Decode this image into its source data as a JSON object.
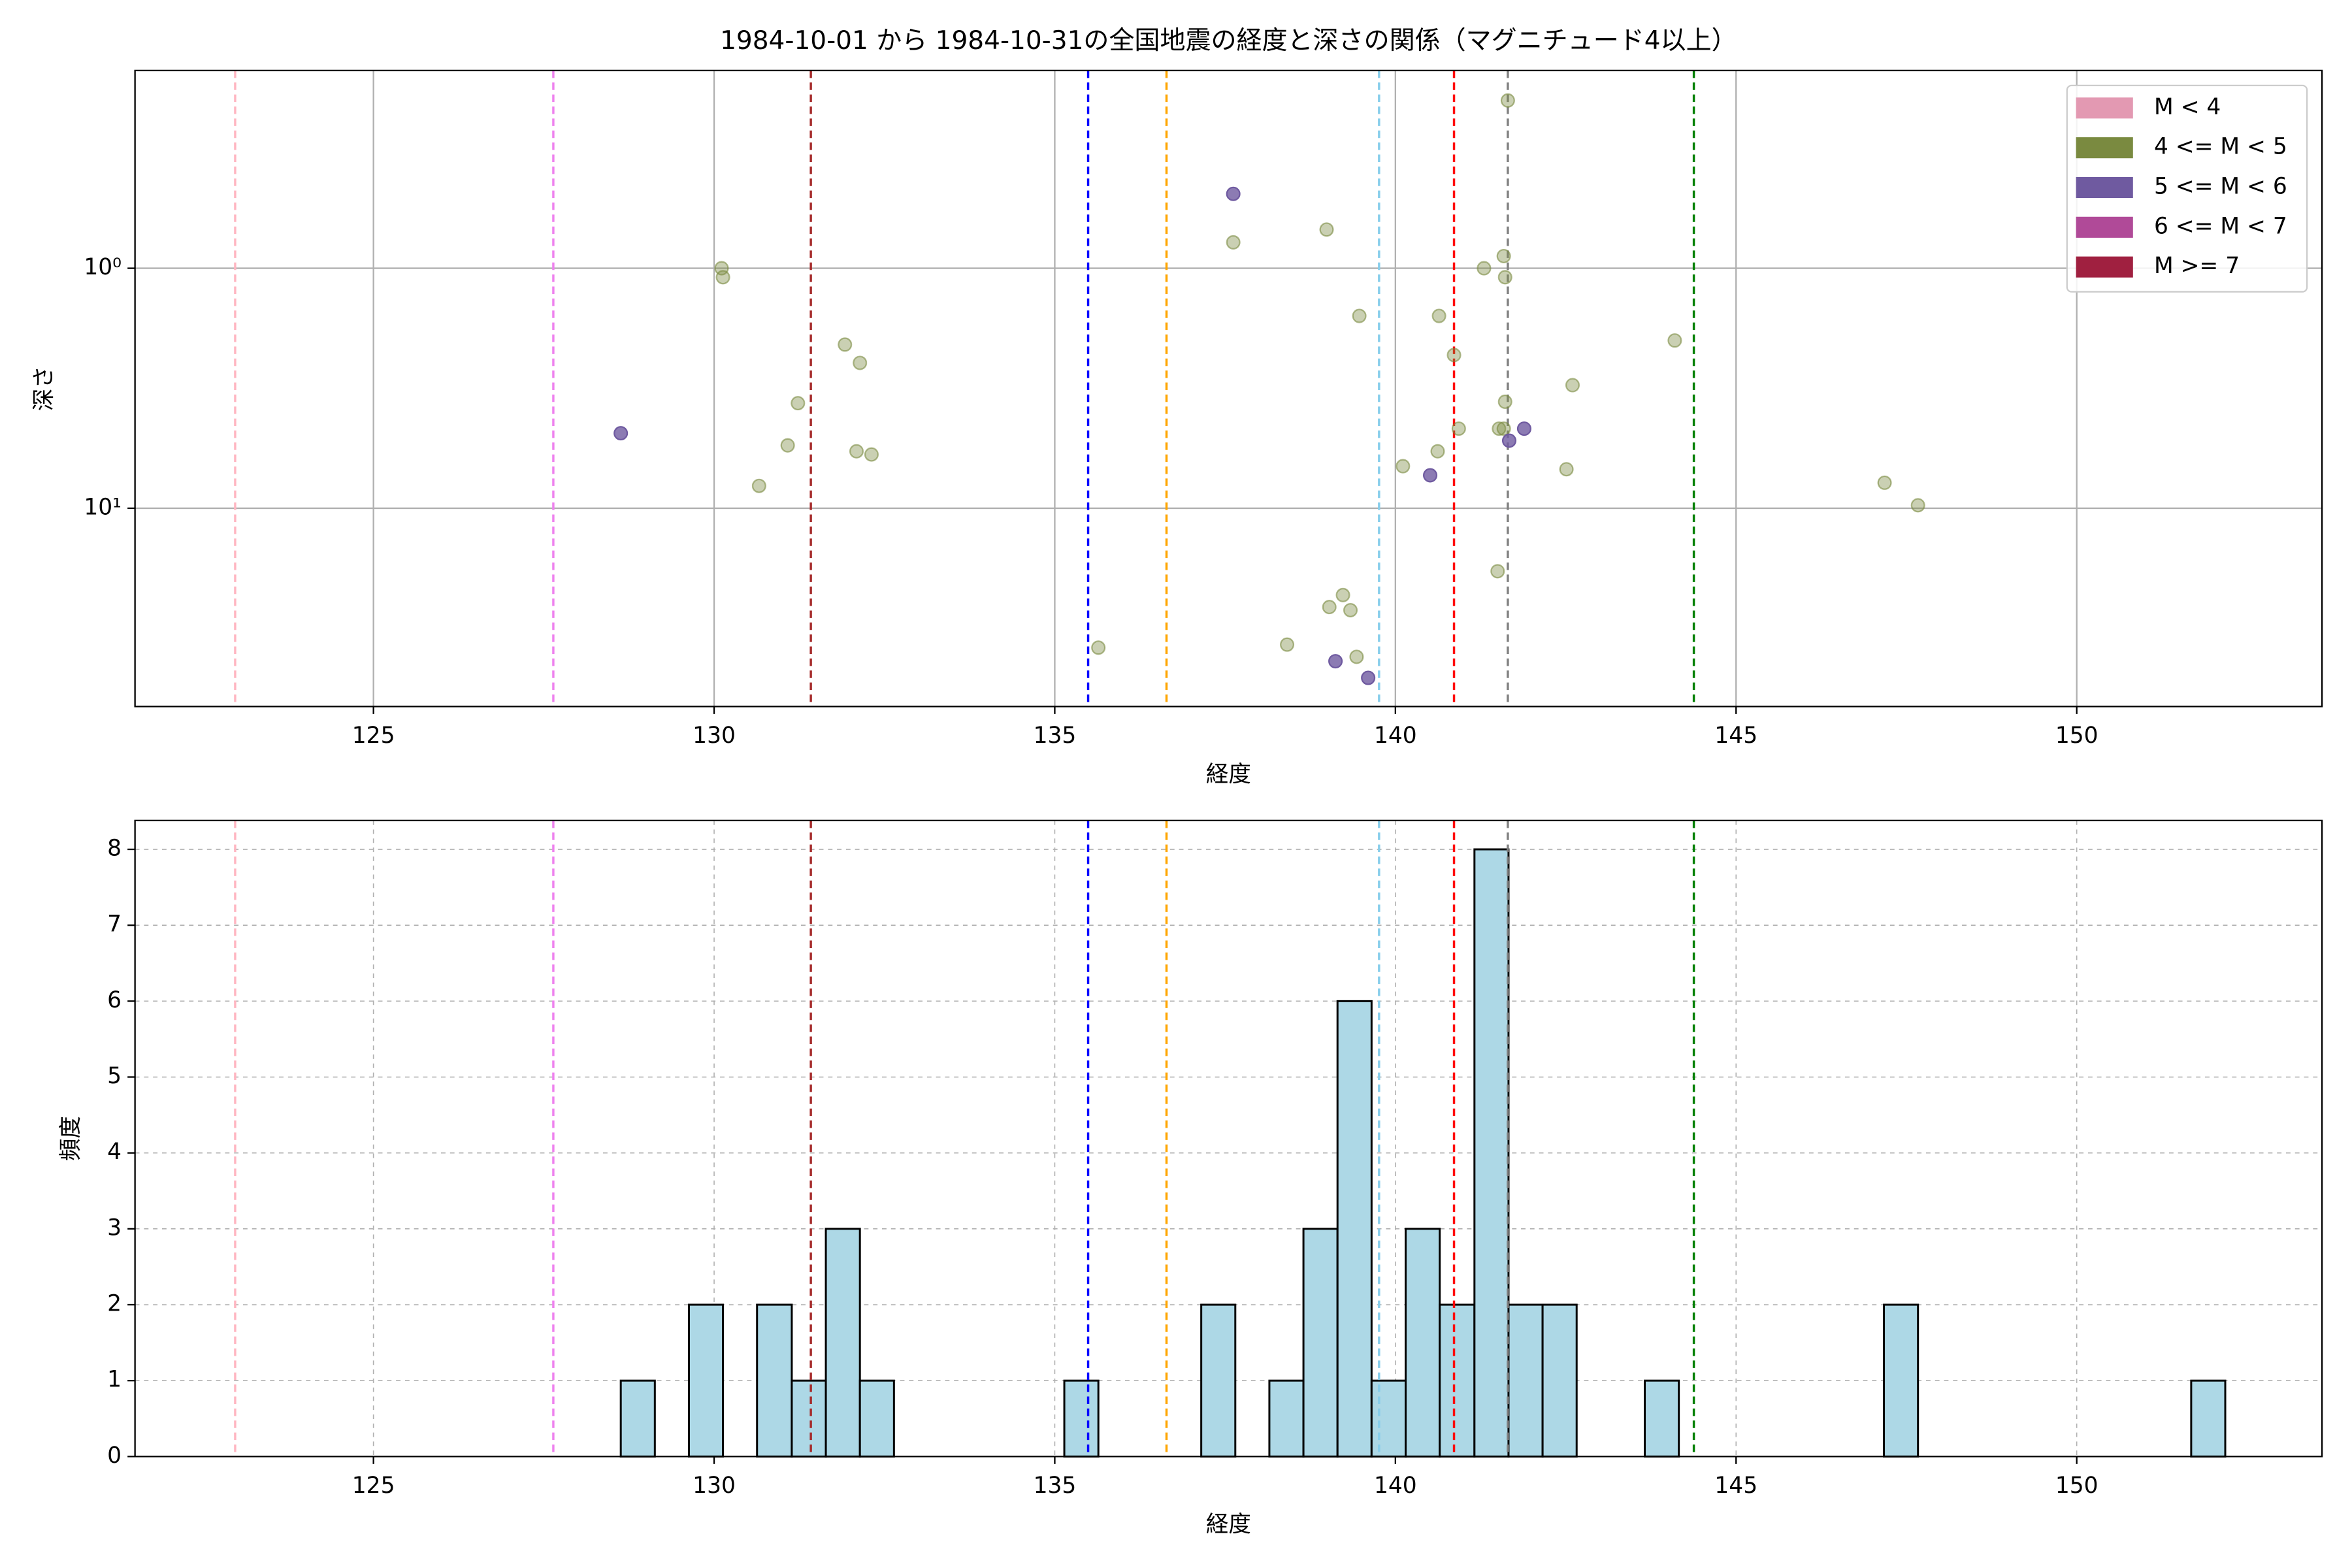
{
  "chart_data": [
    {
      "type": "scatter",
      "title": "1984-10-01 から 1984-10-31の全国地震の経度と深さの関係（マグニチュード4以上）",
      "xlabel": "経度",
      "ylabel": "深さ",
      "xlim": [
        121.5,
        153.6
      ],
      "xticks": [
        125,
        130,
        135,
        140,
        145,
        150
      ],
      "ylim": [
        0.15,
        67
      ],
      "yscale": "log",
      "y_inverted": true,
      "yticks": [
        {
          "value": 1,
          "label": "10⁰"
        },
        {
          "value": 10,
          "label": "10¹"
        }
      ],
      "grid": true,
      "legend": "upper right",
      "vlines": [
        {
          "x": 122.97,
          "color": "#ffb6c1"
        },
        {
          "x": 127.64,
          "color": "#ee82ee"
        },
        {
          "x": 131.42,
          "color": "#a52a2a"
        },
        {
          "x": 135.49,
          "color": "#0000ff"
        },
        {
          "x": 136.64,
          "color": "#ffa500"
        },
        {
          "x": 139.76,
          "color": "#87ceeb"
        },
        {
          "x": 140.86,
          "color": "#ff0000"
        },
        {
          "x": 141.65,
          "color": "#808080"
        },
        {
          "x": 144.38,
          "color": "#008000"
        }
      ],
      "series": [
        {
          "name": "M < 4",
          "color": "#e399b2",
          "x": [],
          "values": []
        },
        {
          "name": "4 <= M < 5",
          "color": "#7a8a40",
          "alpha": 0.4,
          "x": [
            130.11,
            130.13,
            130.66,
            131.08,
            131.23,
            131.92,
            132.09,
            132.14,
            132.31,
            135.64,
            137.62,
            138.41,
            138.99,
            139.03,
            139.23,
            139.34,
            139.43,
            139.47,
            140.11,
            140.64,
            140.62,
            140.86,
            140.93,
            141.3,
            141.5,
            141.52,
            141.59,
            141.59,
            141.61,
            141.61,
            141.65,
            142.51,
            142.6,
            144.1,
            147.18,
            147.67
          ],
          "values": [
            1.0,
            1.09,
            8.07,
            5.47,
            3.65,
            2.08,
            5.79,
            2.48,
            5.97,
            38.1,
            0.78,
            37.0,
            0.69,
            25.8,
            23.0,
            26.6,
            41.6,
            1.58,
            6.68,
            1.58,
            5.79,
            2.3,
            4.66,
            1.0,
            18.3,
            4.66,
            4.66,
            0.89,
            1.09,
            3.6,
            0.2,
            6.88,
            3.07,
            2.0,
            7.83,
            9.72
          ]
        },
        {
          "name": "5 <= M < 6",
          "color": "#6f5aa0",
          "alpha": 0.8,
          "x": [
            128.63,
            137.62,
            139.12,
            139.6,
            140.51,
            141.67,
            141.89
          ],
          "values": [
            4.87,
            0.49,
            43.4,
            50.9,
            7.29,
            5.23,
            4.66
          ]
        },
        {
          "name": "6 <= M < 7",
          "color": "#b04a98",
          "x": [],
          "values": []
        },
        {
          "name": "M >= 7",
          "color": "#a02040",
          "x": [],
          "values": []
        }
      ]
    },
    {
      "type": "histogram",
      "xlabel": "経度",
      "ylabel": "頻度",
      "xlim": [
        121.5,
        153.6
      ],
      "xticks": [
        125,
        130,
        135,
        140,
        145,
        150
      ],
      "ylim": [
        0,
        8.38
      ],
      "yticks": [
        0,
        1,
        2,
        3,
        4,
        5,
        6,
        7,
        8
      ],
      "grid": true,
      "grid_style": "dashed",
      "color": "#add8e6",
      "edgecolor": "#000000",
      "bins": [
        128.63,
        129.13,
        129.63,
        130.13,
        130.63,
        131.14,
        131.64,
        132.14,
        132.64,
        133.14,
        133.64,
        134.14,
        134.64,
        135.14,
        135.64,
        136.15,
        136.65,
        137.15,
        137.65,
        138.15,
        138.65,
        139.15,
        139.65,
        140.15,
        140.65,
        141.16,
        141.66,
        142.16,
        142.66,
        143.16,
        143.66,
        144.16,
        144.66,
        145.16,
        145.66,
        146.17,
        146.67,
        147.17,
        147.67,
        148.17,
        148.67,
        149.17,
        149.67,
        150.17,
        150.67,
        151.18,
        151.68,
        152.18
      ],
      "counts": [
        1,
        0,
        2,
        0,
        2,
        1,
        3,
        1,
        0,
        0,
        0,
        0,
        0,
        1,
        0,
        0,
        0,
        2,
        0,
        1,
        3,
        6,
        1,
        3,
        2,
        8,
        2,
        2,
        0,
        0,
        1,
        0,
        0,
        0,
        0,
        0,
        0,
        2,
        0,
        0,
        0,
        0,
        0,
        0,
        0,
        0,
        1
      ],
      "vlines": [
        {
          "x": 122.97,
          "color": "#ffb6c1"
        },
        {
          "x": 127.64,
          "color": "#ee82ee"
        },
        {
          "x": 131.42,
          "color": "#a52a2a"
        },
        {
          "x": 135.49,
          "color": "#0000ff"
        },
        {
          "x": 136.64,
          "color": "#ffa500"
        },
        {
          "x": 139.76,
          "color": "#87ceeb"
        },
        {
          "x": 140.86,
          "color": "#ff0000"
        },
        {
          "x": 141.65,
          "color": "#808080"
        },
        {
          "x": 144.38,
          "color": "#008000"
        }
      ]
    }
  ]
}
